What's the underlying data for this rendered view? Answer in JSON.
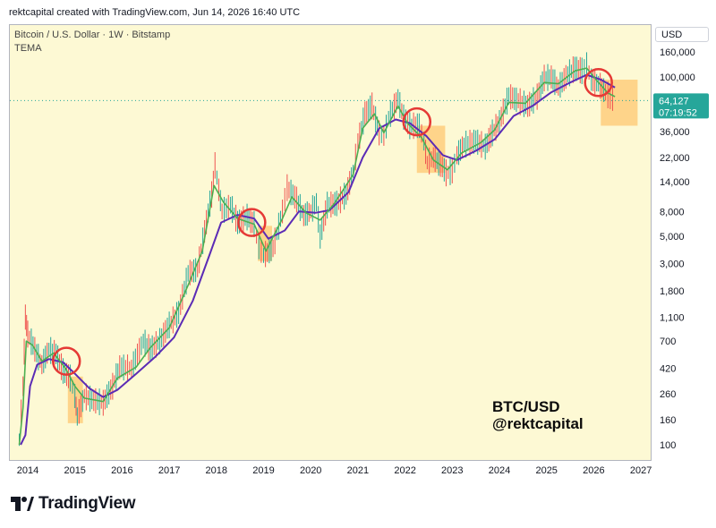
{
  "header": {
    "text": "rektcapital created with TradingView.com, Jun 14, 2026 16:40 UTC"
  },
  "chart": {
    "symbol_line": "Bitcoin / U.S. Dollar · 1W · Bitstamp",
    "indicator_name": "TEMA",
    "currency": "USD",
    "watermark_lines": [
      "BTC/USD",
      "@rektcapital"
    ]
  },
  "footer": {
    "brand": "TradingView"
  },
  "colors": {
    "background": "#fdf9d4",
    "candle_up": "#26a69a",
    "candle_down": "#ef5350",
    "fast_line": "#4caf50",
    "slow_line": "#5b2bb5",
    "circle": "#e53935",
    "zone_fill": "#ffb74d",
    "price_badge": "#26a69a"
  },
  "chart_data": {
    "type": "line",
    "scale": "log",
    "price_ticks": [
      160000,
      100000,
      64000,
      36000,
      22000,
      14000,
      8000,
      5000,
      3000,
      1800,
      1100,
      700,
      420,
      260,
      160,
      100
    ],
    "price_tick_labels": [
      "160,000",
      "100,000",
      "64,000",
      "36,000",
      "22,000",
      "14,000",
      "8,000",
      "5,000",
      "3,000",
      "1,800",
      "1,100",
      "700",
      "420",
      "260",
      "160",
      "100"
    ],
    "year_ticks": [
      "2014",
      "2015",
      "2016",
      "2017",
      "2018",
      "2019",
      "2020",
      "2021",
      "2022",
      "2023",
      "2024",
      "2025",
      "2026",
      "2027"
    ],
    "current_price": {
      "value": "64,127",
      "countdown": "07:19:52"
    },
    "price_path": [
      [
        2013.82,
        110
      ],
      [
        2013.9,
        300
      ],
      [
        2013.95,
        1100
      ],
      [
        2014.0,
        800
      ],
      [
        2014.15,
        600
      ],
      [
        2014.3,
        450
      ],
      [
        2014.45,
        600
      ],
      [
        2014.6,
        550
      ],
      [
        2014.75,
        400
      ],
      [
        2014.9,
        350
      ],
      [
        2015.0,
        250
      ],
      [
        2015.05,
        170
      ],
      [
        2015.2,
        250
      ],
      [
        2015.4,
        230
      ],
      [
        2015.6,
        220
      ],
      [
        2015.8,
        300
      ],
      [
        2015.95,
        430
      ],
      [
        2016.2,
        420
      ],
      [
        2016.45,
        700
      ],
      [
        2016.6,
        600
      ],
      [
        2016.8,
        700
      ],
      [
        2017.0,
        950
      ],
      [
        2017.2,
        1200
      ],
      [
        2017.4,
        2500
      ],
      [
        2017.6,
        2700
      ],
      [
        2017.75,
        5500
      ],
      [
        2017.9,
        11000
      ],
      [
        2017.97,
        19000
      ],
      [
        2018.05,
        12000
      ],
      [
        2018.12,
        8000
      ],
      [
        2018.3,
        9000
      ],
      [
        2018.45,
        6500
      ],
      [
        2018.65,
        7200
      ],
      [
        2018.8,
        6300
      ],
      [
        2018.9,
        4000
      ],
      [
        2019.0,
        3500
      ],
      [
        2019.2,
        4000
      ],
      [
        2019.4,
        8000
      ],
      [
        2019.5,
        12500
      ],
      [
        2019.7,
        10000
      ],
      [
        2019.85,
        7400
      ],
      [
        2020.0,
        8000
      ],
      [
        2020.12,
        9500
      ],
      [
        2020.2,
        5000
      ],
      [
        2020.35,
        9000
      ],
      [
        2020.55,
        9300
      ],
      [
        2020.75,
        11000
      ],
      [
        2020.9,
        17000
      ],
      [
        2021.0,
        29000
      ],
      [
        2021.15,
        50000
      ],
      [
        2021.3,
        58000
      ],
      [
        2021.45,
        35000
      ],
      [
        2021.55,
        33000
      ],
      [
        2021.65,
        47000
      ],
      [
        2021.85,
        66000
      ],
      [
        2021.97,
        47000
      ],
      [
        2022.1,
        40000
      ],
      [
        2022.3,
        40000
      ],
      [
        2022.4,
        30000
      ],
      [
        2022.47,
        20000
      ],
      [
        2022.6,
        22000
      ],
      [
        2022.75,
        19500
      ],
      [
        2022.87,
        16500
      ],
      [
        2023.0,
        17000
      ],
      [
        2023.1,
        23000
      ],
      [
        2023.25,
        28000
      ],
      [
        2023.5,
        30000
      ],
      [
        2023.7,
        27000
      ],
      [
        2023.85,
        35000
      ],
      [
        2024.0,
        43000
      ],
      [
        2024.2,
        70000
      ],
      [
        2024.4,
        64000
      ],
      [
        2024.6,
        58000
      ],
      [
        2024.8,
        69000
      ],
      [
        2024.95,
        98000
      ],
      [
        2025.1,
        100000
      ],
      [
        2025.25,
        82000
      ],
      [
        2025.45,
        105000
      ],
      [
        2025.6,
        118000
      ],
      [
        2025.75,
        112000
      ],
      [
        2025.85,
        124000
      ],
      [
        2025.95,
        95000
      ],
      [
        2026.1,
        88000
      ],
      [
        2026.25,
        75000
      ],
      [
        2026.35,
        68000
      ],
      [
        2026.45,
        64127
      ]
    ],
    "fast_tema_path": [
      [
        2013.82,
        100
      ],
      [
        2013.9,
        200
      ],
      [
        2013.97,
        700
      ],
      [
        2014.1,
        650
      ],
      [
        2014.3,
        480
      ],
      [
        2014.55,
        560
      ],
      [
        2014.8,
        420
      ],
      [
        2015.0,
        300
      ],
      [
        2015.2,
        240
      ],
      [
        2015.6,
        225
      ],
      [
        2015.9,
        350
      ],
      [
        2016.3,
        430
      ],
      [
        2016.6,
        620
      ],
      [
        2017.0,
        900
      ],
      [
        2017.4,
        2000
      ],
      [
        2017.7,
        3800
      ],
      [
        2017.95,
        13000
      ],
      [
        2018.15,
        9500
      ],
      [
        2018.45,
        7000
      ],
      [
        2018.8,
        6300
      ],
      [
        2019.05,
        3800
      ],
      [
        2019.4,
        7000
      ],
      [
        2019.6,
        10500
      ],
      [
        2019.9,
        7800
      ],
      [
        2020.2,
        6800
      ],
      [
        2020.5,
        9300
      ],
      [
        2020.9,
        16000
      ],
      [
        2021.1,
        38000
      ],
      [
        2021.35,
        50000
      ],
      [
        2021.55,
        35000
      ],
      [
        2021.85,
        58000
      ],
      [
        2022.05,
        42000
      ],
      [
        2022.35,
        32000
      ],
      [
        2022.6,
        21000
      ],
      [
        2022.9,
        17500
      ],
      [
        2023.2,
        24000
      ],
      [
        2023.6,
        29000
      ],
      [
        2023.9,
        37000
      ],
      [
        2024.2,
        62000
      ],
      [
        2024.55,
        61000
      ],
      [
        2024.95,
        90000
      ],
      [
        2025.25,
        88000
      ],
      [
        2025.6,
        112000
      ],
      [
        2025.85,
        118000
      ],
      [
        2026.1,
        90000
      ],
      [
        2026.3,
        74000
      ],
      [
        2026.45,
        69000
      ]
    ],
    "slow_tema_path": [
      [
        2013.85,
        100
      ],
      [
        2013.95,
        120
      ],
      [
        2014.05,
        300
      ],
      [
        2014.2,
        450
      ],
      [
        2014.45,
        500
      ],
      [
        2014.75,
        470
      ],
      [
        2015.0,
        380
      ],
      [
        2015.3,
        290
      ],
      [
        2015.6,
        245
      ],
      [
        2015.9,
        280
      ],
      [
        2016.3,
        380
      ],
      [
        2016.7,
        520
      ],
      [
        2017.1,
        750
      ],
      [
        2017.5,
        1500
      ],
      [
        2017.85,
        3500
      ],
      [
        2018.1,
        6500
      ],
      [
        2018.45,
        7500
      ],
      [
        2018.8,
        7000
      ],
      [
        2019.1,
        4800
      ],
      [
        2019.45,
        5600
      ],
      [
        2019.75,
        8000
      ],
      [
        2020.1,
        7800
      ],
      [
        2020.4,
        8200
      ],
      [
        2020.8,
        11500
      ],
      [
        2021.1,
        22000
      ],
      [
        2021.45,
        38000
      ],
      [
        2021.8,
        45000
      ],
      [
        2022.1,
        42000
      ],
      [
        2022.45,
        33000
      ],
      [
        2022.8,
        23000
      ],
      [
        2023.1,
        21000
      ],
      [
        2023.5,
        25000
      ],
      [
        2023.9,
        31000
      ],
      [
        2024.3,
        48000
      ],
      [
        2024.7,
        58000
      ],
      [
        2025.1,
        75000
      ],
      [
        2025.5,
        90000
      ],
      [
        2025.85,
        104000
      ],
      [
        2026.15,
        95000
      ],
      [
        2026.45,
        82000
      ]
    ],
    "markers": [
      {
        "x": 2014.82,
        "y": 480
      },
      {
        "x": 2018.75,
        "y": 6500
      },
      {
        "x": 2022.25,
        "y": 43000
      },
      {
        "x": 2026.1,
        "y": 90000
      }
    ],
    "zones": [
      {
        "x0": 2014.85,
        "x1": 2015.17,
        "y0": 150,
        "y1": 360
      },
      {
        "x0": 2018.88,
        "x1": 2019.18,
        "y0": 3150,
        "y1": 6100
      },
      {
        "x0": 2022.25,
        "x1": 2022.85,
        "y0": 16500,
        "y1": 40000
      },
      {
        "x0": 2026.15,
        "x1": 2026.93,
        "y0": 40000,
        "y1": 95000
      }
    ]
  }
}
